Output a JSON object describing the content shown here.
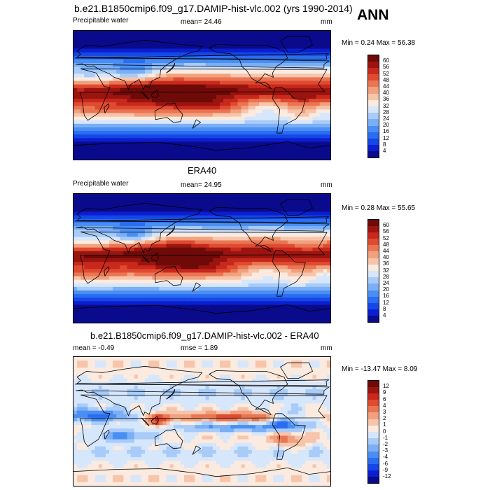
{
  "header": {
    "title": "b.e21.B1850cmip6.f09_g17.DAMIP-hist-vlc.002 (yrs 1990-2014)",
    "season": "ANN"
  },
  "panels": [
    {
      "title": "",
      "variable": "Precipitable water",
      "mean_text": "mean=  24.46",
      "units": "mm",
      "minmax_text": "Min =   0.24 Max =  56.38",
      "levels": [
        "4",
        "8",
        "12",
        "16",
        "20",
        "24",
        "28",
        "32",
        "36",
        "40",
        "44",
        "48",
        "52",
        "56",
        "60"
      ]
    },
    {
      "title": "ERA40",
      "variable": "Precipitable water",
      "mean_text": "mean=  24.95",
      "units": "mm",
      "minmax_text": "Min =   0.28 Max =  55.65",
      "levels": [
        "4",
        "8",
        "12",
        "16",
        "20",
        "24",
        "28",
        "32",
        "36",
        "40",
        "44",
        "48",
        "52",
        "56",
        "60"
      ]
    },
    {
      "title": "b.e21.B1850cmip6.f09_g17.DAMIP-hist-vlc.002 - ERA40",
      "variable": "mean =  -0.49",
      "mean_text": "rmse =   1.89",
      "units": "mm",
      "minmax_text": "Min = -13.47 Max =   8.09",
      "levels": [
        "-12",
        "-9",
        "-6",
        "-4",
        "-3",
        "-2",
        "-1",
        "0",
        "1",
        "2",
        "3",
        "4",
        "6",
        "9",
        "12"
      ]
    }
  ],
  "chart_data": [
    {
      "type": "heatmap",
      "title": "b.e21.B1850cmip6.f09_g17.DAMIP-hist-vlc.002 (yrs 1990-2014)",
      "subtitle": "Precipitable water",
      "mean": 24.46,
      "min": 0.24,
      "max": 56.38,
      "units": "mm",
      "contour_levels": [
        4,
        8,
        12,
        16,
        20,
        24,
        28,
        32,
        36,
        40,
        44,
        48,
        52,
        56,
        60
      ],
      "colors": [
        "#0a0a8c",
        "#0b1fd0",
        "#1546e6",
        "#2a6df0",
        "#4a8ef4",
        "#7aaff6",
        "#a9cbf8",
        "#d6e6fb",
        "#fbeadf",
        "#f6c5ab",
        "#f1a17d",
        "#ea7552",
        "#df4b31",
        "#c8291c",
        "#9b1410",
        "#6e0a08"
      ]
    },
    {
      "type": "heatmap",
      "title": "ERA40",
      "subtitle": "Precipitable water",
      "mean": 24.95,
      "min": 0.28,
      "max": 55.65,
      "units": "mm",
      "contour_levels": [
        4,
        8,
        12,
        16,
        20,
        24,
        28,
        32,
        36,
        40,
        44,
        48,
        52,
        56,
        60
      ],
      "colors": [
        "#0a0a8c",
        "#0b1fd0",
        "#1546e6",
        "#2a6df0",
        "#4a8ef4",
        "#7aaff6",
        "#a9cbf8",
        "#d6e6fb",
        "#fbeadf",
        "#f6c5ab",
        "#f1a17d",
        "#ea7552",
        "#df4b31",
        "#c8291c",
        "#9b1410",
        "#6e0a08"
      ]
    },
    {
      "type": "heatmap",
      "title": "b.e21.B1850cmip6.f09_g17.DAMIP-hist-vlc.002 - ERA40",
      "mean": -0.49,
      "rmse": 1.89,
      "min": -13.47,
      "max": 8.09,
      "units": "mm",
      "contour_levels": [
        -12,
        -9,
        -6,
        -4,
        -3,
        -2,
        -1,
        0,
        1,
        2,
        3,
        4,
        6,
        9,
        12
      ],
      "colors": [
        "#0a0a8c",
        "#0b1fd0",
        "#1546e6",
        "#2a6df0",
        "#4a8ef4",
        "#7aaff6",
        "#a9cbf8",
        "#d6e6fb",
        "#fbeadf",
        "#f6c5ab",
        "#f1a17d",
        "#ea7552",
        "#df4b31",
        "#c8291c",
        "#9b1410",
        "#6e0a08"
      ]
    }
  ]
}
